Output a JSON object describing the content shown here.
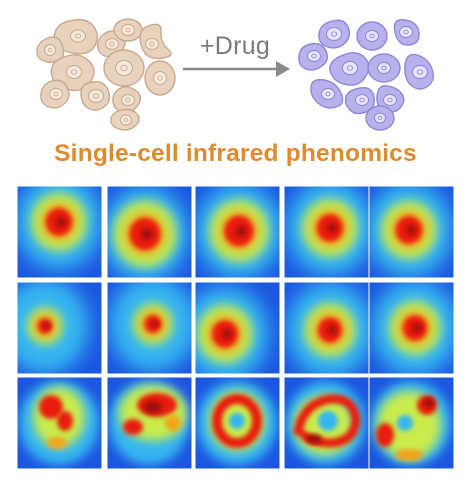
{
  "drug_label": "+Drug",
  "headline": "Single-cell infrared phenomics",
  "colors": {
    "control_cell_fill": "#e8d2bd",
    "control_cell_stroke": "#c7a98d",
    "control_nucleus_fill": "#f4e7dc",
    "treated_cell_fill": "#b7b1ec",
    "treated_cell_stroke": "#8f87d8",
    "treated_nucleus_fill": "#e6e3fb",
    "arrow": "#8a8a8a",
    "headline": "#e08a2e",
    "heatmap_background": "#1c56e0",
    "heatmap_low": "#36b6f0",
    "heatmap_mid": "#c9ec4b",
    "heatmap_high": "#e91f11",
    "heatmap_peak": "#9b0f0c"
  },
  "heatmap_grid": {
    "rows": 3,
    "cols": 5,
    "colormap": "jet",
    "cells": [
      {
        "row": 1,
        "col": 1,
        "pattern": "single-hotspot",
        "intensity": 0.95
      },
      {
        "row": 1,
        "col": 2,
        "pattern": "single-hotspot",
        "intensity": 0.97
      },
      {
        "row": 1,
        "col": 3,
        "pattern": "single-hotspot",
        "intensity": 0.98
      },
      {
        "row": 1,
        "col": 4,
        "pattern": "single-hotspot",
        "intensity": 0.94
      },
      {
        "row": 1,
        "col": 5,
        "pattern": "single-hotspot",
        "intensity": 0.95
      },
      {
        "row": 2,
        "col": 1,
        "pattern": "single-hotspot",
        "intensity": 0.82
      },
      {
        "row": 2,
        "col": 2,
        "pattern": "single-hotspot",
        "intensity": 0.86
      },
      {
        "row": 2,
        "col": 3,
        "pattern": "single-hotspot",
        "intensity": 0.93
      },
      {
        "row": 2,
        "col": 4,
        "pattern": "single-hotspot",
        "intensity": 0.92
      },
      {
        "row": 2,
        "col": 5,
        "pattern": "single-hotspot",
        "intensity": 0.93
      },
      {
        "row": 3,
        "col": 1,
        "pattern": "irregular",
        "intensity": 0.9
      },
      {
        "row": 3,
        "col": 2,
        "pattern": "irregular",
        "intensity": 0.95
      },
      {
        "row": 3,
        "col": 3,
        "pattern": "ring",
        "intensity": 0.85
      },
      {
        "row": 3,
        "col": 4,
        "pattern": "ring",
        "intensity": 0.88
      },
      {
        "row": 3,
        "col": 5,
        "pattern": "fragmented",
        "intensity": 0.92
      }
    ]
  }
}
